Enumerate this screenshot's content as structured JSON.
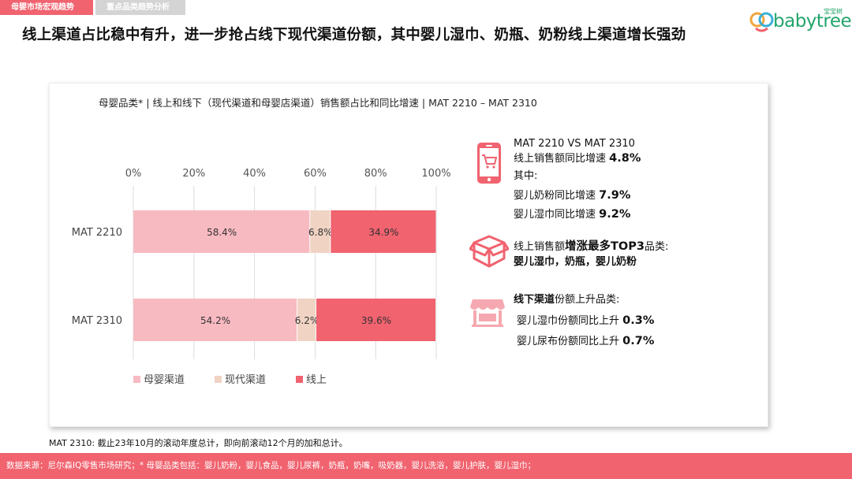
{
  "tabs": [
    "母婴市场宏观趋势",
    "重点品类趋势分析"
  ],
  "headline": "线上渠道占比稳中有升，进一步抢占线下现代渠道份额，其中婴儿湿巾、奶瓶、奶粉线上渠道增长强劲",
  "logo": {
    "text": "babytree",
    "cn": "宝宝树"
  },
  "chart_title": "母婴品类* | 线上和线下（现代渠道和母婴店渠道）销售额占比和同比增速 | MAT 2210 – MAT 2310",
  "chart_data": {
    "type": "bar",
    "orientation": "horizontal",
    "stacked": true,
    "x_ticks": [
      "0%",
      "20%",
      "40%",
      "60%",
      "80%",
      "100%"
    ],
    "xlim": [
      0,
      100
    ],
    "categories": [
      "MAT 2210",
      "MAT 2310"
    ],
    "series": [
      {
        "name": "母婴渠道",
        "color": "#f8bac1",
        "values": [
          58.4,
          54.2
        ],
        "labels": [
          "58.4%",
          "54.2%"
        ]
      },
      {
        "name": "现代渠道",
        "color": "#f0d3c3",
        "values": [
          6.8,
          6.2
        ],
        "labels": [
          "6.8%",
          "6.2%"
        ]
      },
      {
        "name": "线上",
        "color": "#f0636f",
        "values": [
          34.9,
          39.6
        ],
        "labels": [
          "34.9%",
          "39.6%"
        ]
      }
    ],
    "legend_position": "bottom-left"
  },
  "panel1": {
    "icon": "mobile-cart-icon",
    "line1": "MAT 2210 VS MAT 2310",
    "line2_text": "线上销售额同比增速 ",
    "line2_value": "4.8%",
    "line3": "其中:",
    "line4_text": "婴儿奶粉同比增速 ",
    "line4_value": "7.9%",
    "line5_text": "婴儿湿巾同比增速 ",
    "line5_value": "9.2%"
  },
  "panel2": {
    "icon": "box-icon",
    "line1_pre": "线上销售额",
    "line1_bold": "增涨最多TOP3",
    "line1_post": "品类:",
    "line2": "婴儿湿巾，奶瓶，婴儿奶粉"
  },
  "panel3": {
    "icon": "store-icon",
    "line1_bold": "线下渠道",
    "line1_post": "份额上升品类:",
    "line2_text": "婴儿湿巾份额同比上升 ",
    "line2_value": "0.3%",
    "line3_text": "婴儿尿布份额同比上升 ",
    "line3_value": "0.7%"
  },
  "colors": {
    "accent": "#f0636f",
    "brand_green": "#22a56c"
  },
  "footnote": "MAT 2310: 截止23年10月的滚动年度总计，即向前滚动12个月的加和总计。",
  "footer": "数据来源：尼尔森IQ零售市场研究；* 母婴品类包括：婴儿奶粉，婴儿食品，婴儿尿裤，奶瓶，奶嘴，吸奶器，婴儿洗浴，婴儿护肤，婴儿湿巾；"
}
